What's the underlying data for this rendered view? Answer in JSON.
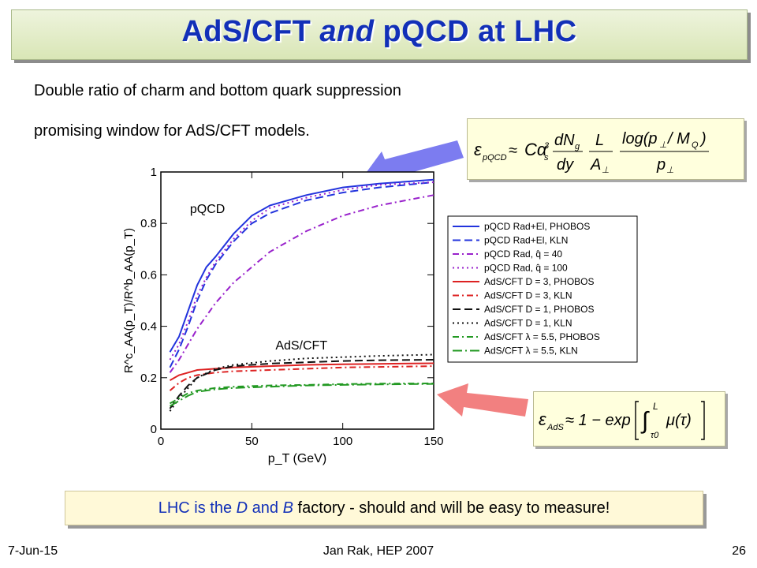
{
  "slide": {
    "title_part1": "AdS/CFT ",
    "title_italic": "and",
    "title_part2": " pQCD at LHC",
    "line1": "Double ratio of charm and bottom quark suppression",
    "line2": "promising window for AdS/CFT models.",
    "bottom_note": {
      "p1": "LHC is the ",
      "D": "D",
      "p2": " and ",
      "B": "B",
      "p3": " factory - should and will be easy to measure!"
    },
    "footer_date": "7-Jun-15",
    "footer_center": "Jan Rak, HEP 2007",
    "footer_page": "26",
    "colors": {
      "title": "#1230b8",
      "arrow_blue": "#7c7cf0",
      "arrow_red": "#f28080"
    }
  },
  "formulas": {
    "pqcd": "ε_pQCD ≈ C α_s³ (dN_g/dy) (L/A_⊥) log(p_⊥/M_Q)/p_⊥",
    "ads": "ε_AdS ≈ 1 − exp[∫_τ0^L μ(τ)]"
  },
  "chart_data": {
    "type": "line",
    "xlabel": "p_T (GeV)",
    "ylabel": "R^c_AA(p_T)/R^b_AA(p_T)",
    "xlim": [
      0,
      150
    ],
    "ylim": [
      0,
      1
    ],
    "xticks": [
      "0",
      "50",
      "100",
      "150"
    ],
    "yticks": [
      "0",
      "0.2",
      "0.4",
      "0.6",
      "0.8",
      "1"
    ],
    "annotations": [
      "pQCD",
      "AdS/CFT"
    ],
    "legend_position": "right",
    "series": [
      {
        "name": "pQCD Rad+El, PHOBOS",
        "color": "#2233dd",
        "dash": "solid",
        "x": [
          5,
          10,
          15,
          20,
          25,
          30,
          40,
          50,
          60,
          80,
          100,
          120,
          150
        ],
        "y": [
          0.3,
          0.36,
          0.46,
          0.56,
          0.63,
          0.67,
          0.76,
          0.83,
          0.87,
          0.91,
          0.94,
          0.955,
          0.97
        ]
      },
      {
        "name": "pQCD Rad+El, KLN",
        "color": "#2233dd",
        "dash": "long",
        "x": [
          5,
          10,
          15,
          20,
          25,
          30,
          40,
          50,
          60,
          80,
          100,
          120,
          150
        ],
        "y": [
          0.24,
          0.31,
          0.4,
          0.5,
          0.58,
          0.64,
          0.73,
          0.8,
          0.84,
          0.89,
          0.92,
          0.94,
          0.96
        ]
      },
      {
        "name": "pQCD Rad, q̂ = 40",
        "color": "#9922cc",
        "dash": "dashdot",
        "x": [
          5,
          10,
          15,
          20,
          30,
          40,
          50,
          60,
          80,
          100,
          120,
          150
        ],
        "y": [
          0.22,
          0.27,
          0.33,
          0.39,
          0.49,
          0.57,
          0.63,
          0.69,
          0.77,
          0.83,
          0.87,
          0.91
        ]
      },
      {
        "name": "pQCD Rad, q̂ = 100",
        "color": "#9922cc",
        "dash": "dot",
        "x": [
          5,
          10,
          15,
          20,
          25,
          30,
          40,
          50,
          60,
          80,
          100,
          120,
          150
        ],
        "y": [
          0.27,
          0.33,
          0.42,
          0.52,
          0.59,
          0.65,
          0.74,
          0.81,
          0.86,
          0.9,
          0.93,
          0.95,
          0.96
        ]
      },
      {
        "name": "AdS/CFT D = 3, PHOBOS",
        "color": "#dd2222",
        "dash": "solid",
        "x": [
          5,
          10,
          15,
          20,
          30,
          40,
          60,
          80,
          100,
          120,
          150
        ],
        "y": [
          0.19,
          0.21,
          0.22,
          0.23,
          0.235,
          0.24,
          0.245,
          0.25,
          0.252,
          0.254,
          0.256
        ]
      },
      {
        "name": "AdS/CFT D = 3, KLN",
        "color": "#dd2222",
        "dash": "dashdot",
        "x": [
          5,
          10,
          15,
          20,
          30,
          40,
          60,
          80,
          100,
          120,
          150
        ],
        "y": [
          0.15,
          0.18,
          0.2,
          0.21,
          0.22,
          0.225,
          0.23,
          0.235,
          0.24,
          0.242,
          0.245
        ]
      },
      {
        "name": "AdS/CFT D = 1, PHOBOS",
        "color": "#111111",
        "dash": "long",
        "x": [
          5,
          10,
          15,
          20,
          30,
          40,
          60,
          80,
          100,
          120,
          150
        ],
        "y": [
          0.08,
          0.13,
          0.17,
          0.2,
          0.23,
          0.245,
          0.255,
          0.26,
          0.265,
          0.268,
          0.27
        ]
      },
      {
        "name": "AdS/CFT D = 1, KLN",
        "color": "#111111",
        "dash": "dot",
        "x": [
          5,
          10,
          15,
          20,
          30,
          40,
          60,
          80,
          100,
          120,
          150
        ],
        "y": [
          0.07,
          0.12,
          0.16,
          0.2,
          0.235,
          0.25,
          0.265,
          0.275,
          0.28,
          0.285,
          0.29
        ]
      },
      {
        "name": "AdS/CFT λ = 5.5, PHOBOS",
        "color": "#229922",
        "dash": "dashdot",
        "x": [
          5,
          10,
          15,
          20,
          30,
          40,
          60,
          80,
          100,
          120,
          150
        ],
        "y": [
          0.1,
          0.12,
          0.14,
          0.15,
          0.16,
          0.165,
          0.17,
          0.172,
          0.175,
          0.177,
          0.178
        ]
      },
      {
        "name": "AdS/CFT λ = 5.5, KLN",
        "color": "#229922",
        "dash": "longdashdot",
        "x": [
          5,
          10,
          15,
          20,
          30,
          40,
          60,
          80,
          100,
          120,
          150
        ],
        "y": [
          0.09,
          0.11,
          0.13,
          0.145,
          0.155,
          0.16,
          0.165,
          0.17,
          0.172,
          0.174,
          0.176
        ]
      }
    ]
  }
}
